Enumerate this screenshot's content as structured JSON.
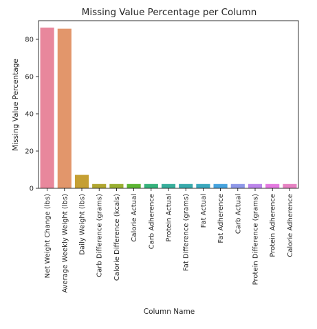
{
  "chart_data": {
    "type": "bar",
    "title": "Missing Value Percentage per Column",
    "xlabel": "Column Name",
    "ylabel": "Missing Value Percentage",
    "ylim": [
      0,
      90
    ],
    "yticks": [
      0,
      20,
      40,
      60,
      80
    ],
    "grid": false,
    "legend": "none",
    "categories": [
      "Net Weight Change (lbs)",
      "Average Weekly Weight (lbs)",
      "Daily Weight (lbs)",
      "Carb Difference (grams)",
      "Calorie Difference (kcals)",
      "Calorie Actual",
      "Carb Adherence",
      "Protein Actual",
      "Fat Difference (grams)",
      "Fat Actual",
      "Fat Adherence",
      "Carb Actual",
      "Protein Difference (grams)",
      "Protein Adherence",
      "Calorie Adherence"
    ],
    "values": [
      86.3,
      85.7,
      7.2,
      2.3,
      2.3,
      2.3,
      2.3,
      2.3,
      2.3,
      2.3,
      2.3,
      2.3,
      2.3,
      2.3,
      2.3
    ],
    "colors": [
      "#e8879c",
      "#e2966b",
      "#c59f33",
      "#b0a631",
      "#98af31",
      "#5bb533",
      "#35b27c",
      "#37ae9b",
      "#38aaac",
      "#3aa8bd",
      "#46a3de",
      "#8e98e8",
      "#bb85ea",
      "#e47ae0",
      "#e682c2"
    ]
  }
}
